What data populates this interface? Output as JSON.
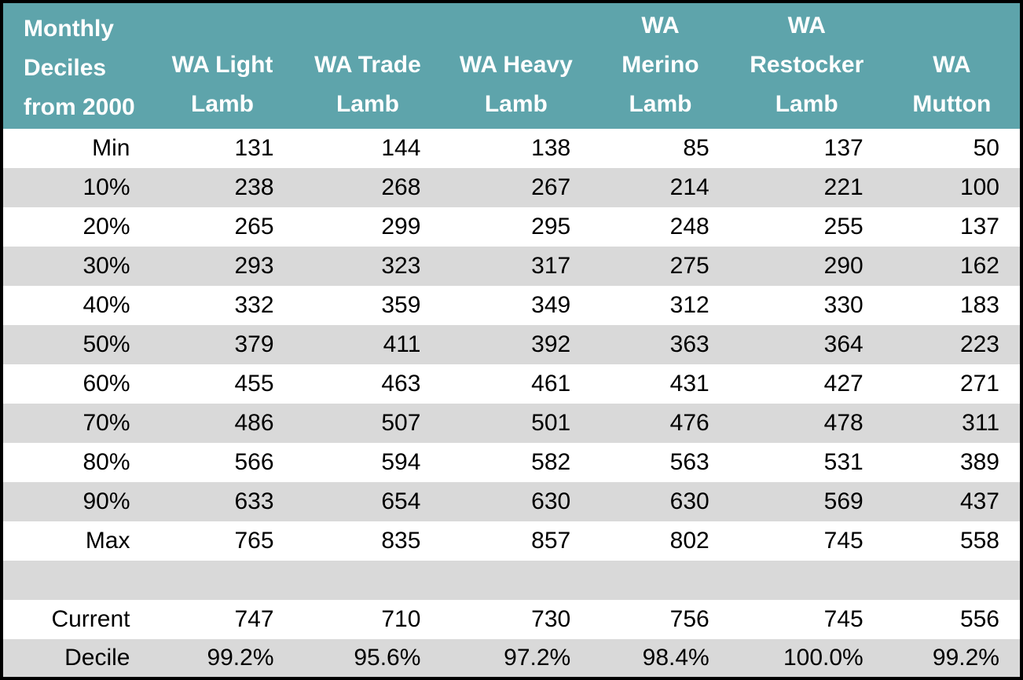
{
  "chart_data": {
    "type": "table",
    "title": "Monthly Deciles from 2000",
    "row_label_lines": [
      "Monthly",
      "Deciles",
      "from 2000"
    ],
    "columns": [
      "WA Light Lamb",
      "WA Trade Lamb",
      "WA Heavy Lamb",
      "WA Merino Lamb",
      "WA Restocker Lamb",
      "WA Mutton"
    ],
    "column_header_lines": [
      [
        "WA Light",
        "Lamb"
      ],
      [
        "WA Trade",
        "Lamb"
      ],
      [
        "WA Heavy",
        "Lamb"
      ],
      [
        "WA",
        "Merino",
        "Lamb"
      ],
      [
        "WA",
        "Restocker",
        "Lamb"
      ],
      [
        "WA",
        "Mutton"
      ]
    ],
    "rows": [
      {
        "label": "Min",
        "values": [
          "131",
          "144",
          "138",
          "85",
          "137",
          "50"
        ]
      },
      {
        "label": "10%",
        "values": [
          "238",
          "268",
          "267",
          "214",
          "221",
          "100"
        ]
      },
      {
        "label": "20%",
        "values": [
          "265",
          "299",
          "295",
          "248",
          "255",
          "137"
        ]
      },
      {
        "label": "30%",
        "values": [
          "293",
          "323",
          "317",
          "275",
          "290",
          "162"
        ]
      },
      {
        "label": "40%",
        "values": [
          "332",
          "359",
          "349",
          "312",
          "330",
          "183"
        ]
      },
      {
        "label": "50%",
        "values": [
          "379",
          "411",
          "392",
          "363",
          "364",
          "223"
        ]
      },
      {
        "label": "60%",
        "values": [
          "455",
          "463",
          "461",
          "431",
          "427",
          "271"
        ]
      },
      {
        "label": "70%",
        "values": [
          "486",
          "507",
          "501",
          "476",
          "478",
          "311"
        ]
      },
      {
        "label": "80%",
        "values": [
          "566",
          "594",
          "582",
          "563",
          "531",
          "389"
        ]
      },
      {
        "label": "90%",
        "values": [
          "633",
          "654",
          "630",
          "630",
          "569",
          "437"
        ]
      },
      {
        "label": "Max",
        "values": [
          "765",
          "835",
          "857",
          "802",
          "745",
          "558"
        ]
      },
      {
        "label": "",
        "values": [
          "",
          "",
          "",
          "",
          "",
          ""
        ]
      },
      {
        "label": "Current",
        "values": [
          "747",
          "710",
          "730",
          "756",
          "745",
          "556"
        ]
      },
      {
        "label": "Decile",
        "values": [
          "99.2%",
          "95.6%",
          "97.2%",
          "98.4%",
          "100.0%",
          "99.2%"
        ]
      }
    ],
    "colors": {
      "header_bg": "#5EA4AB",
      "header_text": "#FFFFFF",
      "stripe_bg": "#D9D9D9",
      "row_bg": "#FFFFFF",
      "border": "#000000",
      "text": "#000000"
    }
  }
}
